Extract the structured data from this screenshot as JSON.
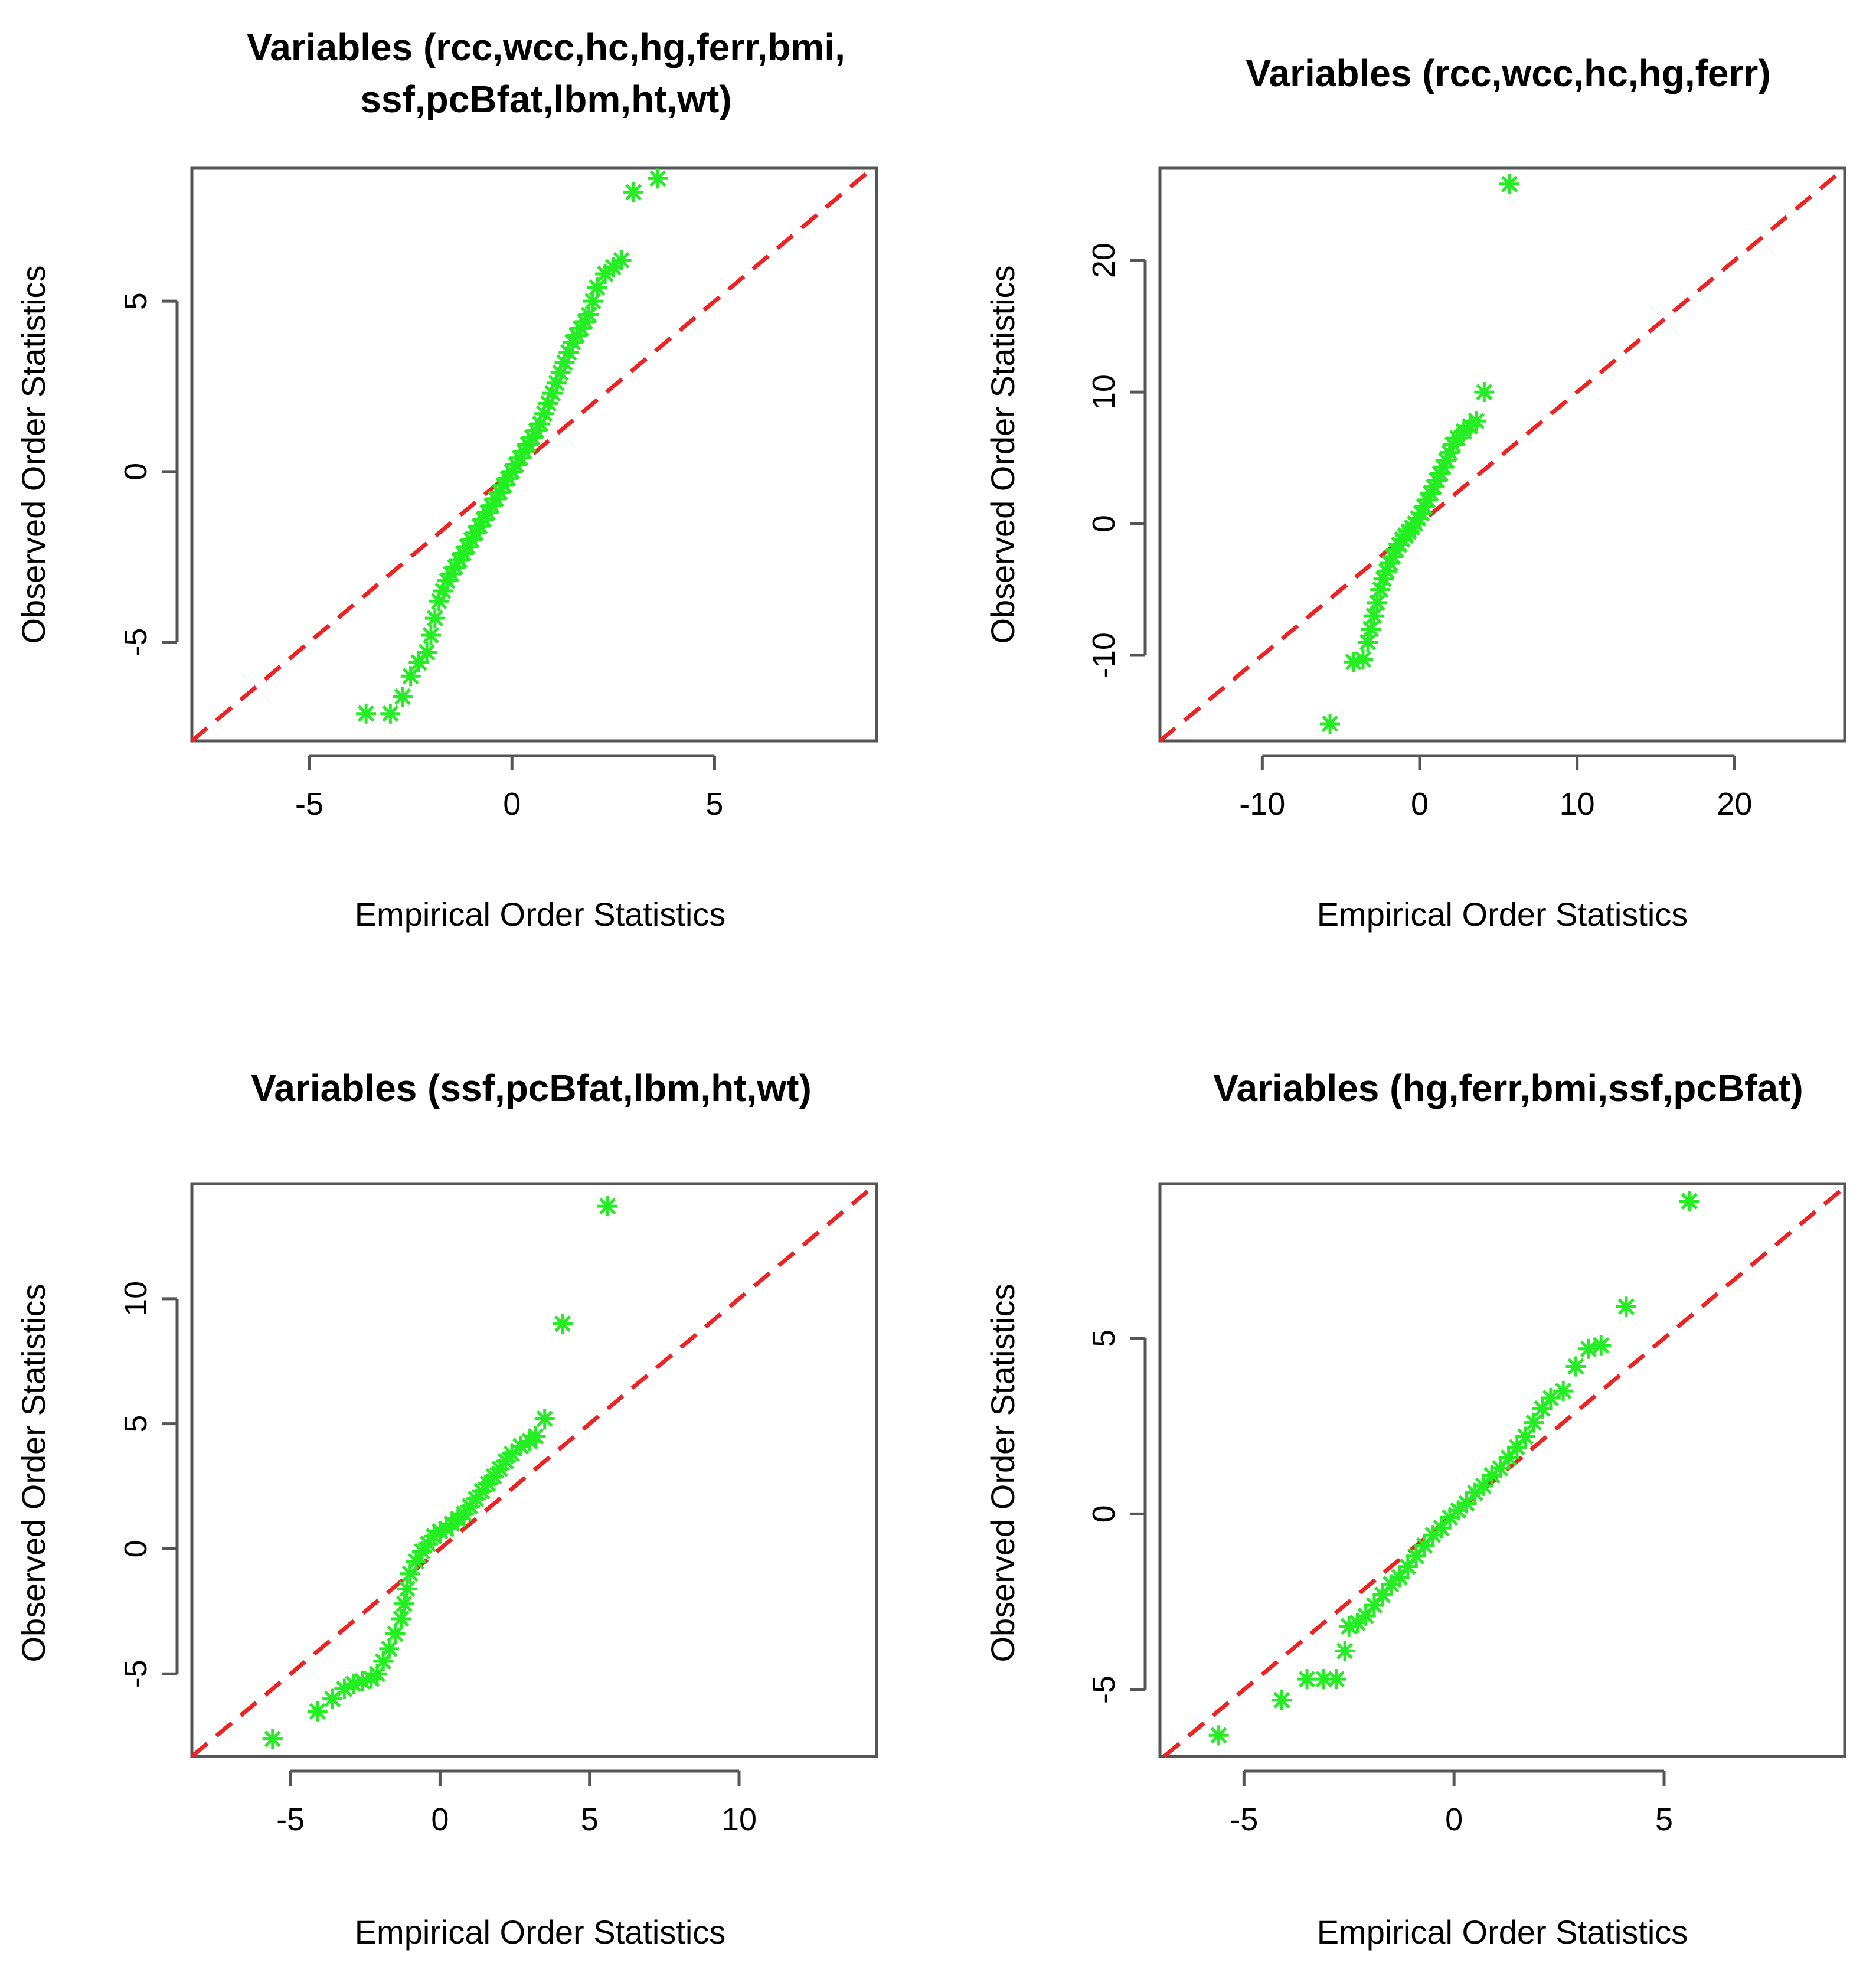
{
  "figure": {
    "point_color": "#22ee22",
    "line_color": "#ee2222"
  },
  "chart_data": [
    {
      "type": "scatter",
      "title_lines": [
        "Variables (rcc,wcc,hc,hg,ferr,bmi,",
        "ssf,pcBfat,lbm,ht,wt)"
      ],
      "xlabel": "Empirical Order Statistics",
      "ylabel": "Observed Order Statistics",
      "xlim": [
        -7.9,
        9.0
      ],
      "ylim": [
        -7.9,
        8.9
      ],
      "xticks": [
        -5,
        0,
        5
      ],
      "xtick_labels": [
        "-5",
        "0",
        "5"
      ],
      "yticks": [
        -5,
        0,
        5
      ],
      "ytick_labels": [
        "-5",
        "0",
        "5"
      ],
      "reference_line": "y = x",
      "points": [
        [
          -3.6,
          -7.1
        ],
        [
          -3.0,
          -7.1
        ],
        [
          -2.7,
          -6.6
        ],
        [
          -2.5,
          -6.0
        ],
        [
          -2.3,
          -5.6
        ],
        [
          -2.1,
          -5.3
        ],
        [
          -2.0,
          -4.8
        ],
        [
          -1.9,
          -4.3
        ],
        [
          -1.8,
          -3.8
        ],
        [
          -1.7,
          -3.5
        ],
        [
          -1.6,
          -3.2
        ],
        [
          -1.5,
          -3.0
        ],
        [
          -1.4,
          -2.8
        ],
        [
          -1.3,
          -2.6
        ],
        [
          -1.2,
          -2.4
        ],
        [
          -1.1,
          -2.2
        ],
        [
          -1.0,
          -2.0
        ],
        [
          -0.9,
          -1.8
        ],
        [
          -0.8,
          -1.6
        ],
        [
          -0.7,
          -1.4
        ],
        [
          -0.6,
          -1.2
        ],
        [
          -0.5,
          -1.0
        ],
        [
          -0.4,
          -0.8
        ],
        [
          -0.3,
          -0.6
        ],
        [
          -0.2,
          -0.4
        ],
        [
          -0.1,
          -0.2
        ],
        [
          0.0,
          0.0
        ],
        [
          0.1,
          0.2
        ],
        [
          0.2,
          0.4
        ],
        [
          0.3,
          0.6
        ],
        [
          0.4,
          0.8
        ],
        [
          0.5,
          1.0
        ],
        [
          0.6,
          1.2
        ],
        [
          0.7,
          1.4
        ],
        [
          0.8,
          1.7
        ],
        [
          0.9,
          2.0
        ],
        [
          1.0,
          2.3
        ],
        [
          1.1,
          2.6
        ],
        [
          1.2,
          2.9
        ],
        [
          1.3,
          3.2
        ],
        [
          1.4,
          3.5
        ],
        [
          1.5,
          3.8
        ],
        [
          1.6,
          4.0
        ],
        [
          1.7,
          4.2
        ],
        [
          1.8,
          4.4
        ],
        [
          1.9,
          4.6
        ],
        [
          2.0,
          5.0
        ],
        [
          2.1,
          5.4
        ],
        [
          2.3,
          5.8
        ],
        [
          2.5,
          6.0
        ],
        [
          2.7,
          6.2
        ],
        [
          3.0,
          8.2
        ],
        [
          3.6,
          8.6
        ]
      ]
    },
    {
      "type": "scatter",
      "title_lines": [
        "Variables (rcc,wcc,hc,hg,ferr)"
      ],
      "xlabel": "Empirical Order Statistics",
      "ylabel": "Observed Order Statistics",
      "xlim": [
        -16.5,
        27.0
      ],
      "ylim": [
        -16.5,
        27.0
      ],
      "xticks": [
        -10,
        0,
        10,
        20
      ],
      "xtick_labels": [
        "-10",
        "0",
        "10",
        "20"
      ],
      "yticks": [
        -10,
        0,
        10,
        20
      ],
      "ytick_labels": [
        "-10",
        "0",
        "10",
        "20"
      ],
      "reference_line": "y = x",
      "points": [
        [
          -5.7,
          -15.2
        ],
        [
          -4.2,
          -10.5
        ],
        [
          -3.6,
          -10.3
        ],
        [
          -3.3,
          -9.0
        ],
        [
          -3.1,
          -8.0
        ],
        [
          -2.9,
          -7.0
        ],
        [
          -2.7,
          -6.0
        ],
        [
          -2.5,
          -5.0
        ],
        [
          -2.3,
          -4.2
        ],
        [
          -2.1,
          -3.6
        ],
        [
          -1.9,
          -3.0
        ],
        [
          -1.7,
          -2.5
        ],
        [
          -1.5,
          -2.0
        ],
        [
          -1.3,
          -1.6
        ],
        [
          -1.1,
          -1.2
        ],
        [
          -0.9,
          -0.9
        ],
        [
          -0.7,
          -0.6
        ],
        [
          -0.5,
          -0.3
        ],
        [
          -0.3,
          0.0
        ],
        [
          -0.1,
          0.4
        ],
        [
          0.1,
          0.8
        ],
        [
          0.3,
          1.3
        ],
        [
          0.5,
          1.8
        ],
        [
          0.7,
          2.3
        ],
        [
          0.9,
          2.8
        ],
        [
          1.1,
          3.3
        ],
        [
          1.3,
          3.8
        ],
        [
          1.5,
          4.3
        ],
        [
          1.7,
          4.8
        ],
        [
          1.9,
          5.4
        ],
        [
          2.1,
          6.0
        ],
        [
          2.4,
          6.5
        ],
        [
          2.8,
          7.0
        ],
        [
          3.2,
          7.4
        ],
        [
          3.6,
          7.8
        ],
        [
          4.1,
          10.0
        ],
        [
          5.7,
          25.8
        ]
      ]
    },
    {
      "type": "scatter",
      "title_lines": [
        "Variables (ssf,pcBfat,lbm,ht,wt)"
      ],
      "xlabel": "Empirical Order Statistics",
      "ylabel": "Observed Order Statistics",
      "xlim": [
        -8.3,
        14.6
      ],
      "ylim": [
        -8.3,
        14.6
      ],
      "xticks": [
        -5,
        0,
        5,
        10
      ],
      "xtick_labels": [
        "-5",
        "0",
        "5",
        "10"
      ],
      "yticks": [
        -5,
        0,
        5,
        10
      ],
      "ytick_labels": [
        "-5",
        "0",
        "5",
        "10"
      ],
      "reference_line": "y = x",
      "points": [
        [
          -5.6,
          -7.6
        ],
        [
          -4.1,
          -6.5
        ],
        [
          -3.6,
          -6.0
        ],
        [
          -3.2,
          -5.6
        ],
        [
          -2.9,
          -5.4
        ],
        [
          -2.6,
          -5.3
        ],
        [
          -2.3,
          -5.2
        ],
        [
          -2.1,
          -5.0
        ],
        [
          -1.9,
          -4.5
        ],
        [
          -1.7,
          -4.0
        ],
        [
          -1.5,
          -3.4
        ],
        [
          -1.3,
          -2.8
        ],
        [
          -1.2,
          -2.2
        ],
        [
          -1.1,
          -1.6
        ],
        [
          -1.0,
          -1.0
        ],
        [
          -0.8,
          -0.5
        ],
        [
          -0.6,
          -0.1
        ],
        [
          -0.4,
          0.2
        ],
        [
          -0.2,
          0.5
        ],
        [
          0.0,
          0.7
        ],
        [
          0.2,
          0.8
        ],
        [
          0.4,
          1.0
        ],
        [
          0.6,
          1.2
        ],
        [
          0.8,
          1.4
        ],
        [
          1.0,
          1.7
        ],
        [
          1.2,
          2.0
        ],
        [
          1.4,
          2.3
        ],
        [
          1.6,
          2.6
        ],
        [
          1.8,
          2.9
        ],
        [
          2.0,
          3.2
        ],
        [
          2.2,
          3.5
        ],
        [
          2.4,
          3.8
        ],
        [
          2.7,
          4.1
        ],
        [
          3.0,
          4.3
        ],
        [
          3.2,
          4.5
        ],
        [
          3.5,
          5.2
        ],
        [
          4.1,
          9.0
        ],
        [
          5.6,
          13.7
        ]
      ]
    },
    {
      "type": "scatter",
      "title_lines": [
        "Variables (hg,ferr,bmi,ssf,pcBfat)"
      ],
      "xlabel": "Empirical Order Statistics",
      "ylabel": "Observed Order Statistics",
      "xlim": [
        -7.0,
        9.3
      ],
      "ylim": [
        -6.9,
        9.4
      ],
      "xticks": [
        -5,
        0,
        5
      ],
      "xtick_labels": [
        "-5",
        "0",
        "5"
      ],
      "yticks": [
        -5,
        0,
        5
      ],
      "ytick_labels": [
        "-5",
        "0",
        "5"
      ],
      "reference_line": "y = x",
      "points": [
        [
          -5.6,
          -6.3
        ],
        [
          -4.1,
          -5.3
        ],
        [
          -3.5,
          -4.7
        ],
        [
          -3.1,
          -4.7
        ],
        [
          -2.8,
          -4.7
        ],
        [
          -2.6,
          -3.9
        ],
        [
          -2.5,
          -3.2
        ],
        [
          -2.3,
          -3.1
        ],
        [
          -2.1,
          -2.9
        ],
        [
          -1.9,
          -2.6
        ],
        [
          -1.7,
          -2.3
        ],
        [
          -1.5,
          -2.0
        ],
        [
          -1.3,
          -1.8
        ],
        [
          -1.1,
          -1.5
        ],
        [
          -0.9,
          -1.2
        ],
        [
          -0.7,
          -0.9
        ],
        [
          -0.5,
          -0.6
        ],
        [
          -0.3,
          -0.4
        ],
        [
          -0.1,
          -0.1
        ],
        [
          0.1,
          0.1
        ],
        [
          0.3,
          0.3
        ],
        [
          0.5,
          0.6
        ],
        [
          0.7,
          0.8
        ],
        [
          0.9,
          1.1
        ],
        [
          1.1,
          1.3
        ],
        [
          1.3,
          1.6
        ],
        [
          1.5,
          1.9
        ],
        [
          1.7,
          2.2
        ],
        [
          1.9,
          2.6
        ],
        [
          2.1,
          3.0
        ],
        [
          2.3,
          3.3
        ],
        [
          2.6,
          3.5
        ],
        [
          2.9,
          4.2
        ],
        [
          3.2,
          4.7
        ],
        [
          3.5,
          4.8
        ],
        [
          4.1,
          5.9
        ],
        [
          5.6,
          8.9
        ]
      ]
    }
  ]
}
